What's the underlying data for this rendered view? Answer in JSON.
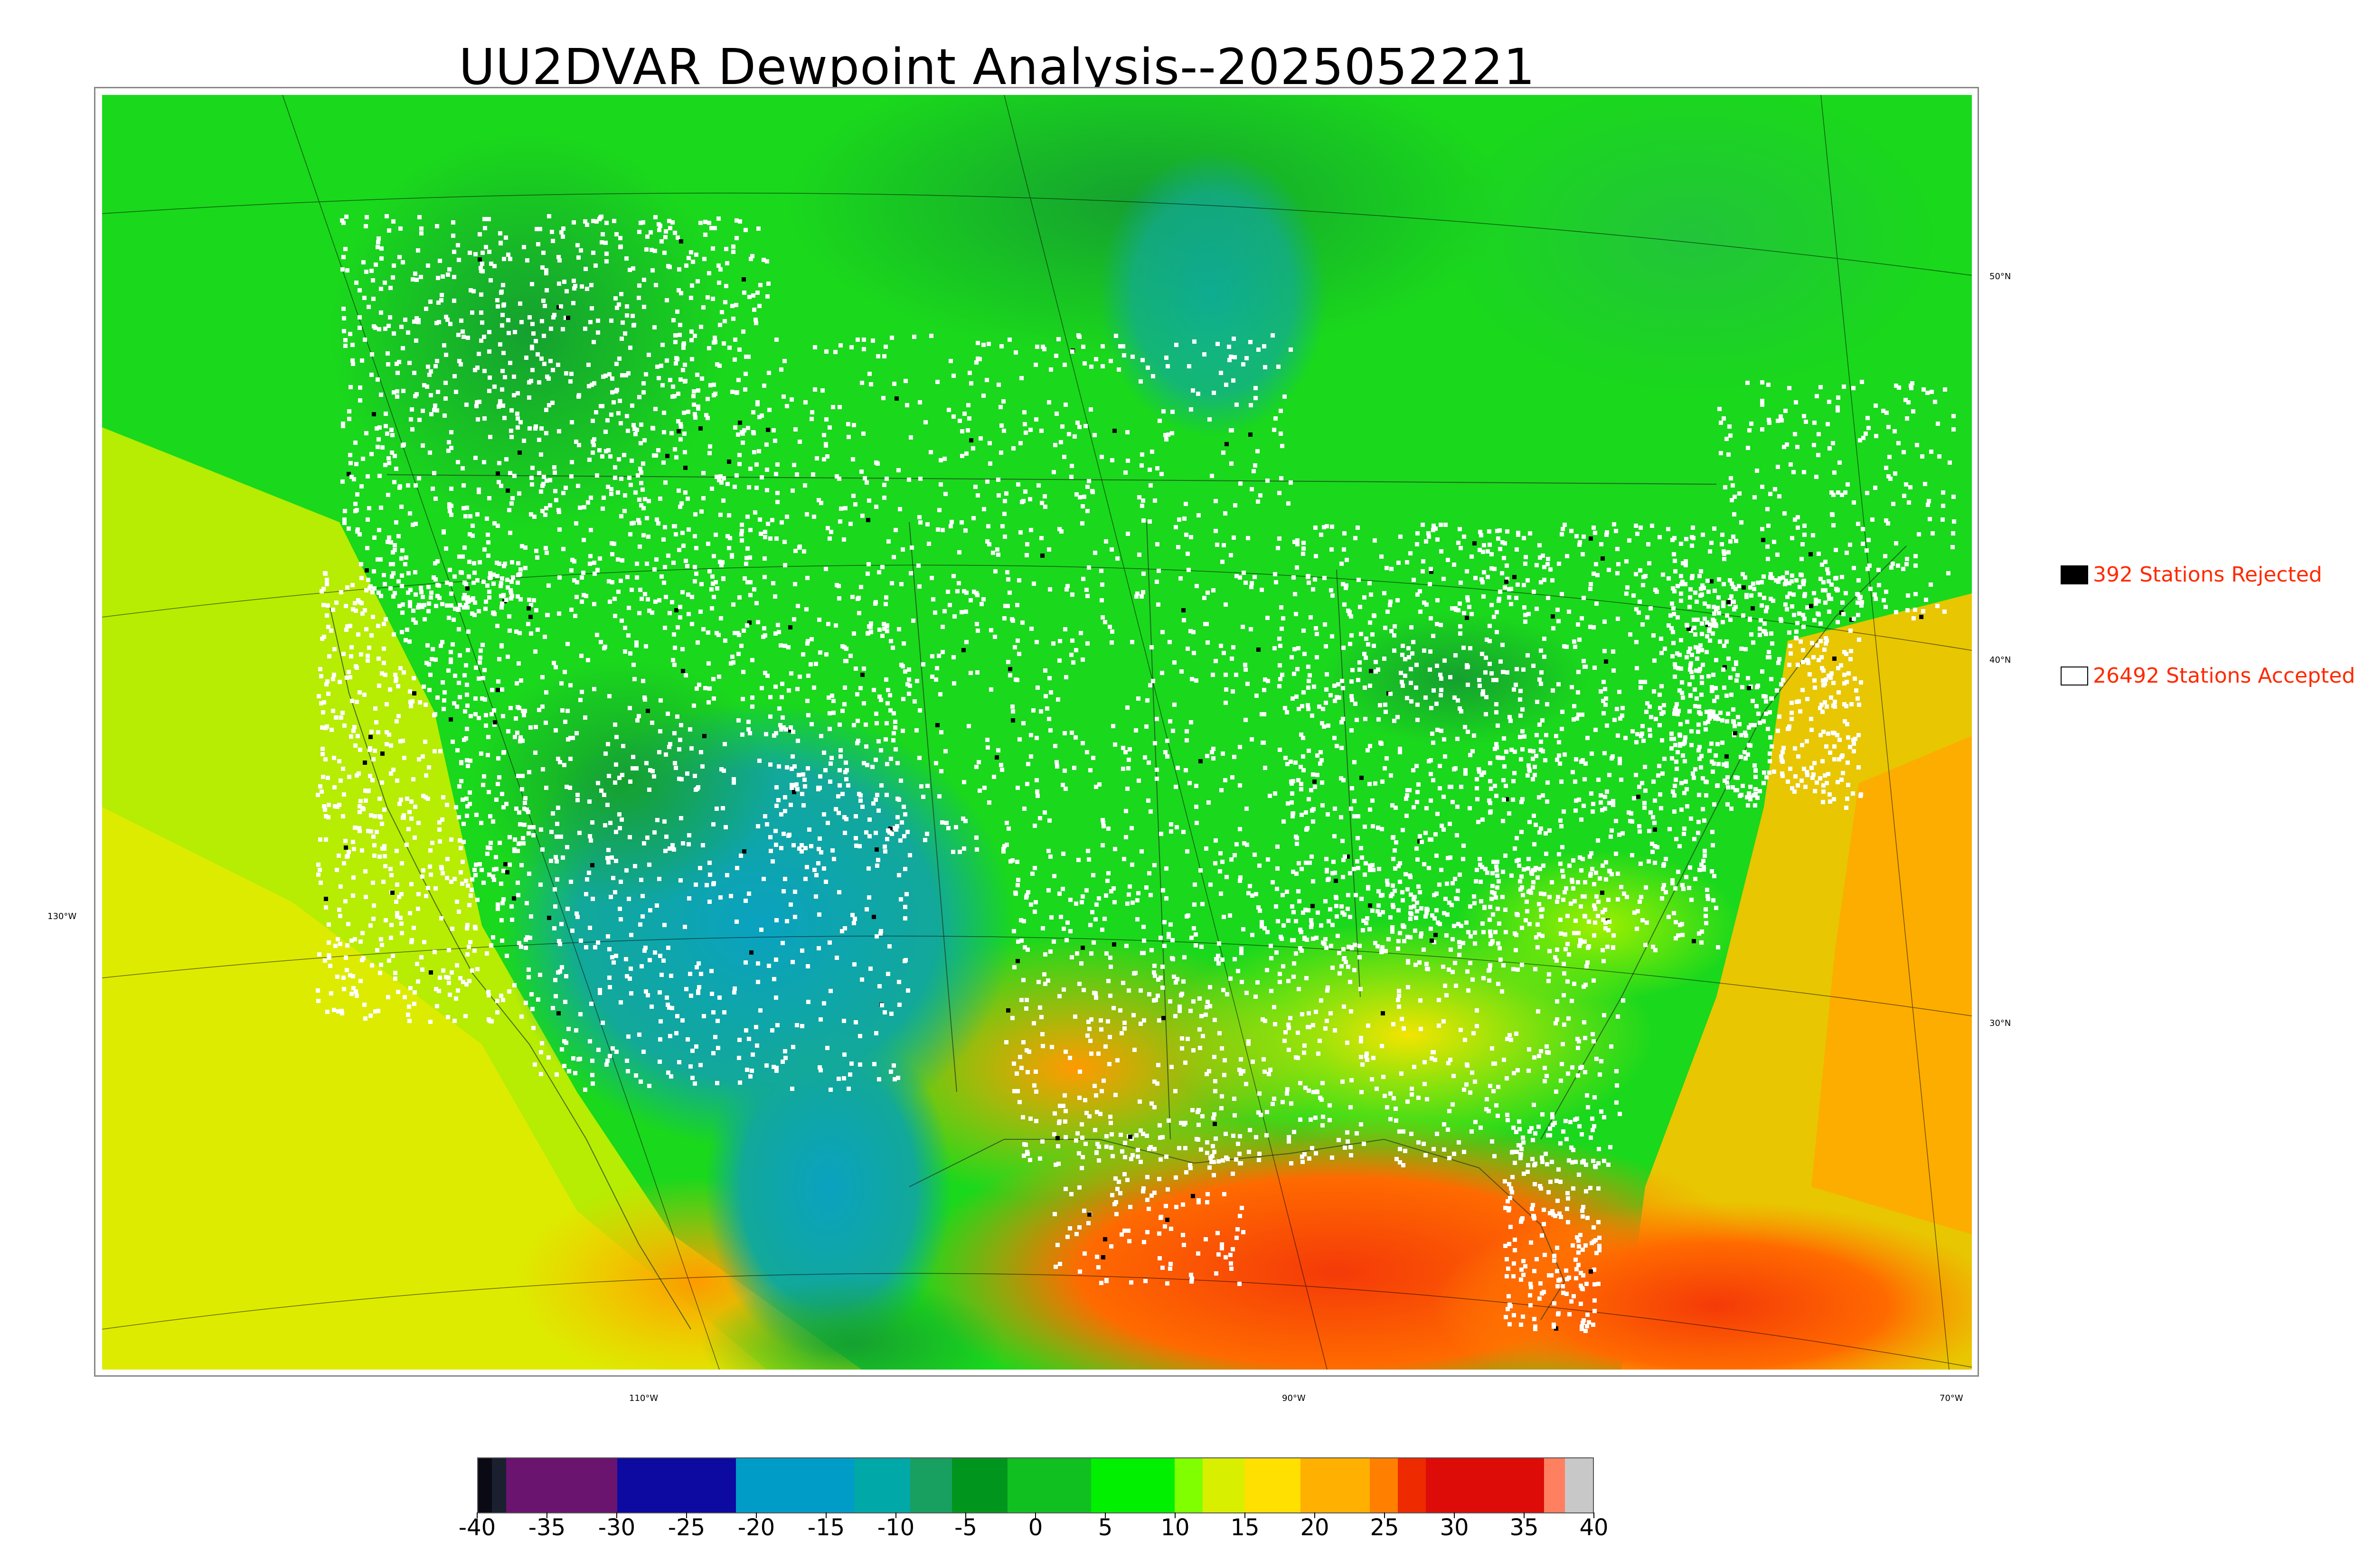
{
  "title": "UU2DVAR Dewpoint Analysis--2025052221",
  "legend": {
    "rejected": {
      "label": "392 Stations Rejected",
      "color": "#000000"
    },
    "accepted": {
      "label": "26492 Stations Accepted",
      "color": "#ffffff"
    }
  },
  "graticule": {
    "lat_labels": [
      "50°N",
      "40°N",
      "30°N"
    ],
    "lon_labels": [
      "130°W",
      "110°W",
      "90°W",
      "70°W"
    ]
  },
  "colorbar": {
    "tick_labels": [
      "-40",
      "-35",
      "-30",
      "-25",
      "-20",
      "-15",
      "-10",
      "-5",
      "0",
      "5",
      "10",
      "15",
      "20",
      "25",
      "30",
      "35",
      "40"
    ],
    "range": [
      -40,
      40
    ],
    "colors": [
      {
        "from": -40,
        "to": -39,
        "color": "#0a0a14"
      },
      {
        "from": -39,
        "to": -38,
        "color": "#1a2030"
      },
      {
        "from": -38,
        "to": -30,
        "color": "#6a1470"
      },
      {
        "from": -30,
        "to": -21.5,
        "color": "#0c0aa0"
      },
      {
        "from": -21.5,
        "to": -13,
        "color": "#009cc8"
      },
      {
        "from": -13,
        "to": -9,
        "color": "#00a8a8"
      },
      {
        "from": -9,
        "to": -6,
        "color": "#18a060"
      },
      {
        "from": -6,
        "to": -2,
        "color": "#00961e"
      },
      {
        "from": -2,
        "to": 4,
        "color": "#10c020"
      },
      {
        "from": 4,
        "to": 10,
        "color": "#00f000"
      },
      {
        "from": 10,
        "to": 12,
        "color": "#80ff00"
      },
      {
        "from": 12,
        "to": 15,
        "color": "#d8f000"
      },
      {
        "from": 15,
        "to": 19,
        "color": "#ffe000"
      },
      {
        "from": 19,
        "to": 24,
        "color": "#ffb000"
      },
      {
        "from": 24,
        "to": 26,
        "color": "#ff8000"
      },
      {
        "from": 26,
        "to": 28,
        "color": "#ee2a00"
      },
      {
        "from": 28,
        "to": 36.5,
        "color": "#dd0c08"
      },
      {
        "from": 36.5,
        "to": 38,
        "color": "#ff8060"
      },
      {
        "from": 38,
        "to": 40,
        "color": "#c8c8c8"
      }
    ]
  }
}
